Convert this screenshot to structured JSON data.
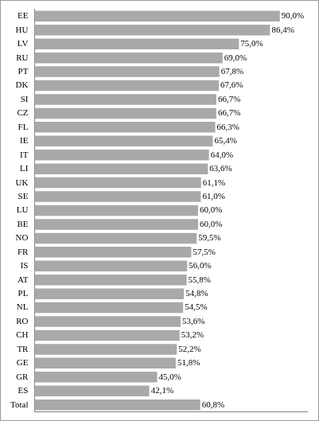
{
  "chart_data": {
    "type": "bar",
    "orientation": "horizontal",
    "categories": [
      "EE",
      "HU",
      "LV",
      "RU",
      "PT",
      "DK",
      "SI",
      "CZ",
      "FL",
      "IE",
      "IT",
      "LI",
      "UK",
      "SE",
      "LU",
      "BE",
      "NO",
      "FR",
      "IS",
      "AT",
      "PL",
      "NL",
      "RO",
      "CH",
      "TR",
      "GE",
      "GR",
      "ES",
      "Total"
    ],
    "values": [
      90.0,
      86.4,
      75.0,
      69.0,
      67.8,
      67.6,
      66.7,
      66.7,
      66.3,
      65.4,
      64.0,
      63.6,
      61.1,
      61.0,
      60.0,
      60.0,
      59.5,
      57.5,
      56.0,
      55.8,
      54.8,
      54.5,
      53.6,
      53.2,
      52.2,
      51.8,
      45.0,
      42.1,
      60.8
    ],
    "value_labels": [
      "90,0%",
      "86,4%",
      "75,0%",
      "69,0%",
      "67,8%",
      "67,6%",
      "66,7%",
      "66,7%",
      "66,3%",
      "65,4%",
      "64,0%",
      "63,6%",
      "61,1%",
      "61,0%",
      "60,0%",
      "60,0%",
      "59,5%",
      "57,5%",
      "56,0%",
      "55,8%",
      "54,8%",
      "54,5%",
      "53,6%",
      "53,2%",
      "52,2%",
      "51,8%",
      "45,0%",
      "42,1%",
      "60,8%"
    ],
    "color": "#a9a9a9",
    "xlim": [
      0,
      100
    ],
    "grid": false,
    "data_labels": true,
    "tick_labels": "y"
  }
}
